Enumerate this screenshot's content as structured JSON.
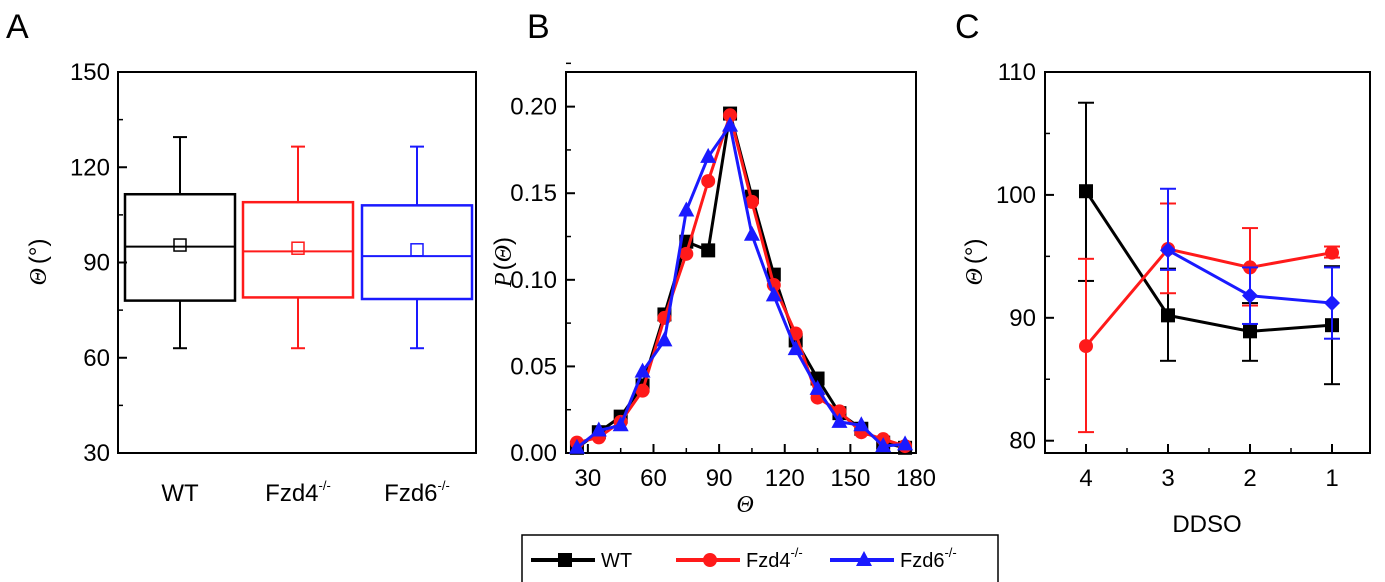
{
  "colors": {
    "WT": "#000000",
    "Fzd4": "#ff1a1a",
    "Fzd6": "#1a1aff"
  },
  "chart_data": [
    {
      "panel": "A",
      "type": "box",
      "categories": [
        {
          "base": "WT",
          "sup": ""
        },
        {
          "base": "Fzd4",
          "sup": "-/-"
        },
        {
          "base": "Fzd6",
          "sup": "-/-"
        }
      ],
      "boxes": [
        {
          "series": "WT",
          "whisker_low": 63,
          "q1": 78,
          "median": 95,
          "mean": 95.5,
          "q3": 111.5,
          "whisker_high": 129.5
        },
        {
          "series": "Fzd4",
          "whisker_low": 63,
          "q1": 79,
          "median": 93.5,
          "mean": 94.5,
          "q3": 109,
          "whisker_high": 126.5
        },
        {
          "series": "Fzd6",
          "whisker_low": 63,
          "q1": 78.5,
          "median": 92,
          "mean": 94,
          "q3": 108,
          "whisker_high": 126.5
        }
      ],
      "ylim": [
        30,
        150
      ],
      "yticks": [
        30,
        60,
        90,
        120,
        150
      ],
      "ylabel": {
        "symbol": "Θ",
        "unit": "(°)"
      }
    },
    {
      "panel": "B",
      "type": "line",
      "xlim": [
        20,
        180
      ],
      "ylim": [
        0,
        0.22
      ],
      "xticks": [
        30,
        60,
        90,
        120,
        150,
        180
      ],
      "yticks": [
        0.0,
        0.05,
        0.1,
        0.15,
        0.2
      ],
      "ytick_labels": [
        "0.00",
        "0.05",
        "0.10",
        "0.15",
        "0.20"
      ],
      "xlabel": "Θ",
      "ylabel": {
        "prefix": "P",
        "symbol": "Θ"
      },
      "series": [
        {
          "key": "WT",
          "marker": "square",
          "x": [
            25,
            35,
            45,
            55,
            65,
            75,
            85,
            95,
            105,
            115,
            125,
            135,
            145,
            155,
            165,
            175
          ],
          "y": [
            0.003,
            0.012,
            0.021,
            0.039,
            0.08,
            0.122,
            0.117,
            0.196,
            0.148,
            0.103,
            0.065,
            0.043,
            0.023,
            0.014,
            0.006,
            0.003
          ]
        },
        {
          "key": "Fzd4",
          "marker": "circle",
          "x": [
            25,
            35,
            45,
            55,
            65,
            75,
            85,
            95,
            105,
            115,
            125,
            135,
            145,
            155,
            165,
            175
          ],
          "y": [
            0.006,
            0.009,
            0.018,
            0.036,
            0.078,
            0.115,
            0.157,
            0.195,
            0.145,
            0.097,
            0.069,
            0.032,
            0.024,
            0.012,
            0.008,
            0.004
          ]
        },
        {
          "key": "Fzd6",
          "marker": "triangle",
          "x": [
            25,
            35,
            45,
            55,
            65,
            75,
            85,
            95,
            105,
            115,
            125,
            135,
            145,
            155,
            165,
            175
          ],
          "y": [
            0.003,
            0.013,
            0.016,
            0.047,
            0.065,
            0.14,
            0.171,
            0.189,
            0.126,
            0.091,
            0.06,
            0.037,
            0.018,
            0.016,
            0.004,
            0.005
          ]
        }
      ],
      "legend": {
        "position": "bottom",
        "entries": [
          {
            "key": "WT",
            "base": "WT",
            "sup": ""
          },
          {
            "key": "Fzd4",
            "base": "Fzd4",
            "sup": "-/-"
          },
          {
            "key": "Fzd6",
            "base": "Fzd6",
            "sup": "-/-"
          }
        ]
      }
    },
    {
      "panel": "C",
      "type": "line",
      "categories": [
        "4",
        "3",
        "2",
        "1"
      ],
      "ylim": [
        79,
        110
      ],
      "yticks": [
        80,
        90,
        100,
        110
      ],
      "xlabel": "DDSO",
      "ylabel": {
        "symbol": "Θ",
        "unit": "(°)"
      },
      "series": [
        {
          "key": "WT",
          "marker": "square",
          "values": [
            100.3,
            90.2,
            88.9,
            89.4
          ],
          "error_low": [
            93.0,
            86.5,
            86.5,
            84.6
          ],
          "error_high": [
            107.5,
            94.0,
            91.2,
            94.2
          ]
        },
        {
          "key": "Fzd4",
          "marker": "circle",
          "values": [
            87.7,
            95.6,
            94.1,
            95.3
          ],
          "error_low": [
            80.7,
            92.0,
            91.0,
            94.9
          ],
          "error_high": [
            94.8,
            99.3,
            97.3,
            95.8
          ]
        },
        {
          "key": "Fzd6",
          "marker": "diamond",
          "values": [
            null,
            95.5,
            91.8,
            91.2
          ],
          "error_low": [
            null,
            93.9,
            89.5,
            88.3
          ],
          "error_high": [
            null,
            100.5,
            94.1,
            94.1
          ]
        }
      ]
    }
  ],
  "panel_labels": [
    "A",
    "B",
    "C"
  ]
}
